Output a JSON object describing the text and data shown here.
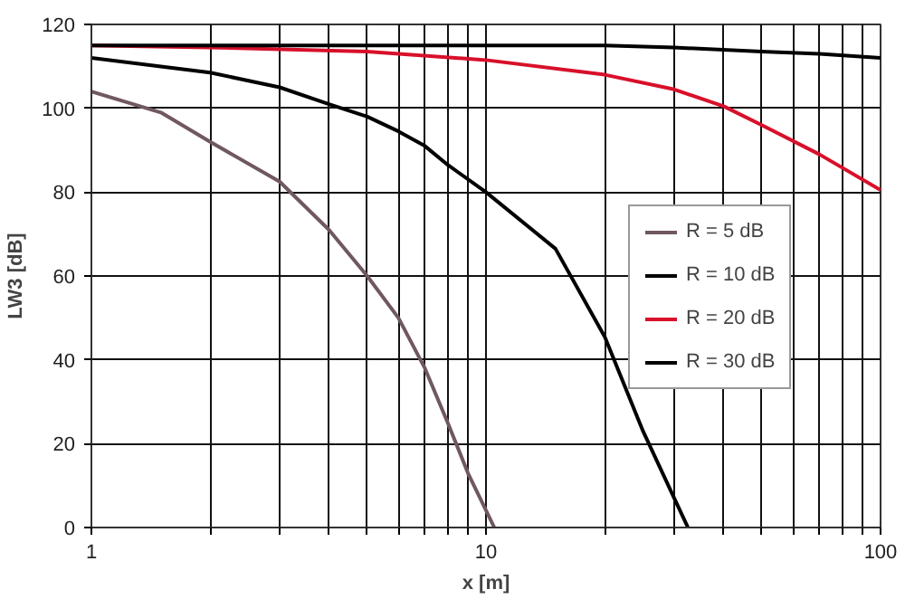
{
  "chart_data": {
    "type": "line",
    "xlabel": "x [m]",
    "ylabel": "LW3 [dB]",
    "log": "x",
    "xlim": [
      1,
      100
    ],
    "ylim": [
      0,
      120
    ],
    "xticks": [
      1,
      {
        "value": 2,
        "label": null
      },
      {
        "value": 3,
        "label": null
      },
      {
        "value": 4,
        "label": null
      },
      {
        "value": 5,
        "label": null
      },
      {
        "value": 6,
        "label": null
      },
      {
        "value": 7,
        "label": null
      },
      {
        "value": 8,
        "label": null
      },
      {
        "value": 9,
        "label": null
      },
      10,
      {
        "value": 20,
        "label": null
      },
      {
        "value": 30,
        "label": null
      },
      {
        "value": 40,
        "label": null
      },
      {
        "value": 50,
        "label": null
      },
      {
        "value": 60,
        "label": null
      },
      {
        "value": 70,
        "label": null
      },
      {
        "value": 80,
        "label": null
      },
      {
        "value": 90,
        "label": null
      },
      100
    ],
    "yticks": [
      0,
      20,
      40,
      60,
      80,
      100,
      120
    ],
    "grid": true,
    "legend": "right",
    "marker": "none",
    "line_style": "solid",
    "series": [
      {
        "name": "R = 5 dB",
        "color": "#705860",
        "x": [
          1,
          1.5,
          2,
          3,
          4,
          5,
          6,
          7,
          8,
          9,
          10.5
        ],
        "values": [
          104,
          99,
          92,
          82.5,
          71,
          60,
          50,
          38,
          25,
          13,
          0
        ]
      },
      {
        "name": "R = 10 dB",
        "color": "#000000",
        "x": [
          1,
          2,
          3,
          4,
          5,
          6,
          7,
          8,
          10,
          15,
          20,
          25,
          30,
          32.5
        ],
        "values": [
          112,
          108.5,
          105,
          101,
          98,
          94.5,
          91,
          86.5,
          80,
          66.5,
          45.5,
          23,
          7,
          0
        ]
      },
      {
        "name": "R = 20 dB",
        "color": "#d8102a",
        "x": [
          1,
          2,
          5,
          10,
          20,
          30,
          40,
          50,
          70,
          100
        ],
        "values": [
          115,
          114.5,
          113.5,
          111.5,
          108,
          104.5,
          100.5,
          96,
          89,
          80.5
        ]
      },
      {
        "name": "R = 30 dB",
        "color": "#000000",
        "x": [
          1,
          5,
          10,
          20,
          30,
          50,
          70,
          100
        ],
        "values": [
          115,
          115,
          115,
          115,
          114.5,
          113.5,
          113,
          112
        ]
      }
    ]
  }
}
